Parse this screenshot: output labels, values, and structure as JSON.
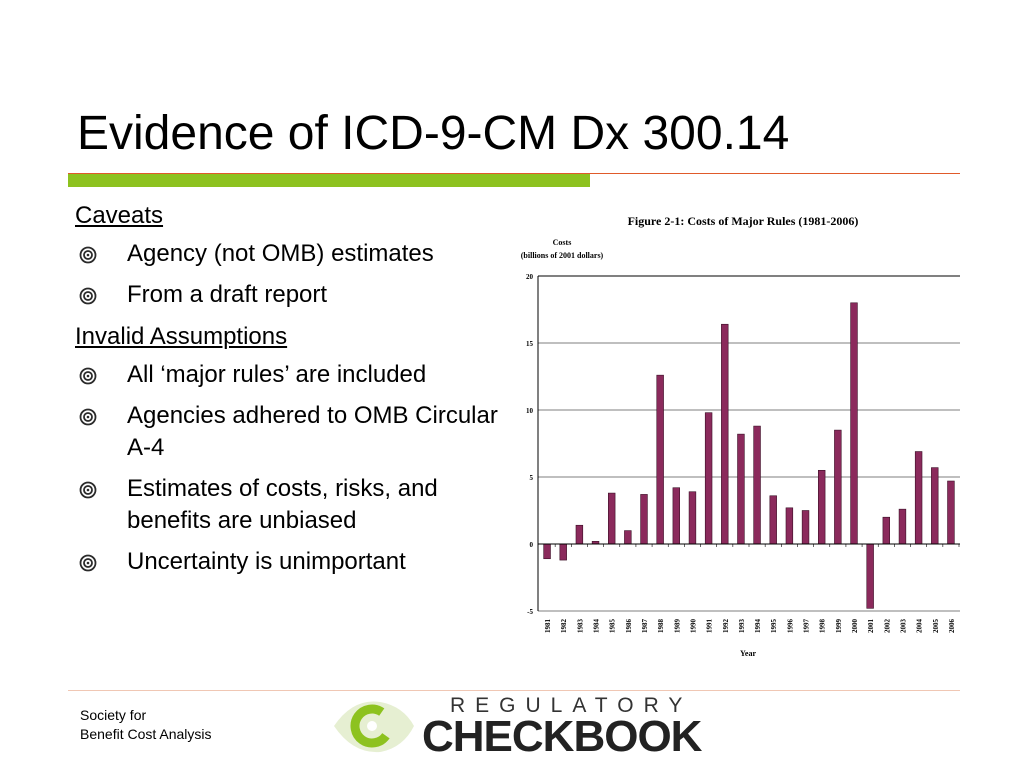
{
  "slide": {
    "title": "Evidence of ICD-9-CM Dx 300.14"
  },
  "content": {
    "sections": [
      {
        "heading": "Caveats",
        "items": [
          "Agency (not OMB) estimates",
          "From a draft report"
        ]
      },
      {
        "heading": "Invalid Assumptions",
        "items": [
          "All ‘major rules’ are included",
          "Agencies adhered to OMB Circular A-4",
          "Estimates of costs, risks, and benefits are unbiased",
          "Uncertainty is unimportant"
        ]
      }
    ]
  },
  "chart_data": {
    "type": "bar",
    "title": "Figure 2-1:  Costs of Major Rules (1981-2006)",
    "ylabel": "Costs (billions of 2001 dollars)",
    "ylabel_lines": [
      "Costs",
      "(billions of 2001 dollars)"
    ],
    "xlabel": "Year",
    "ylim": [
      -5,
      20
    ],
    "yticks": [
      -5,
      0,
      5,
      10,
      15,
      20
    ],
    "grid": true,
    "categories": [
      "1981",
      "1982",
      "1983",
      "1984",
      "1985",
      "1986",
      "1987",
      "1988",
      "1989",
      "1990",
      "1991",
      "1992",
      "1993",
      "1994",
      "1995",
      "1996",
      "1997",
      "1998",
      "1999",
      "2000",
      "2001",
      "2002",
      "2003",
      "2004",
      "2005",
      "2006"
    ],
    "values": [
      -1.1,
      -1.2,
      1.4,
      0.2,
      3.8,
      1.0,
      3.7,
      12.6,
      4.2,
      3.9,
      9.8,
      16.4,
      8.2,
      8.8,
      3.6,
      2.7,
      2.5,
      5.5,
      8.5,
      18.0,
      -4.8,
      2.0,
      2.6,
      6.9,
      5.7,
      4.7
    ],
    "bar_color": "#8b2a5c"
  },
  "footer": {
    "society_line1": "Society for",
    "society_line2": "Benefit Cost Analysis",
    "logo_top": "REGULATORY",
    "logo_bottom": "CHECKBOOK"
  },
  "colors": {
    "accent_green": "#8dc21f",
    "accent_orange": "#e05a2a",
    "bullet": "#2a2a2a"
  }
}
